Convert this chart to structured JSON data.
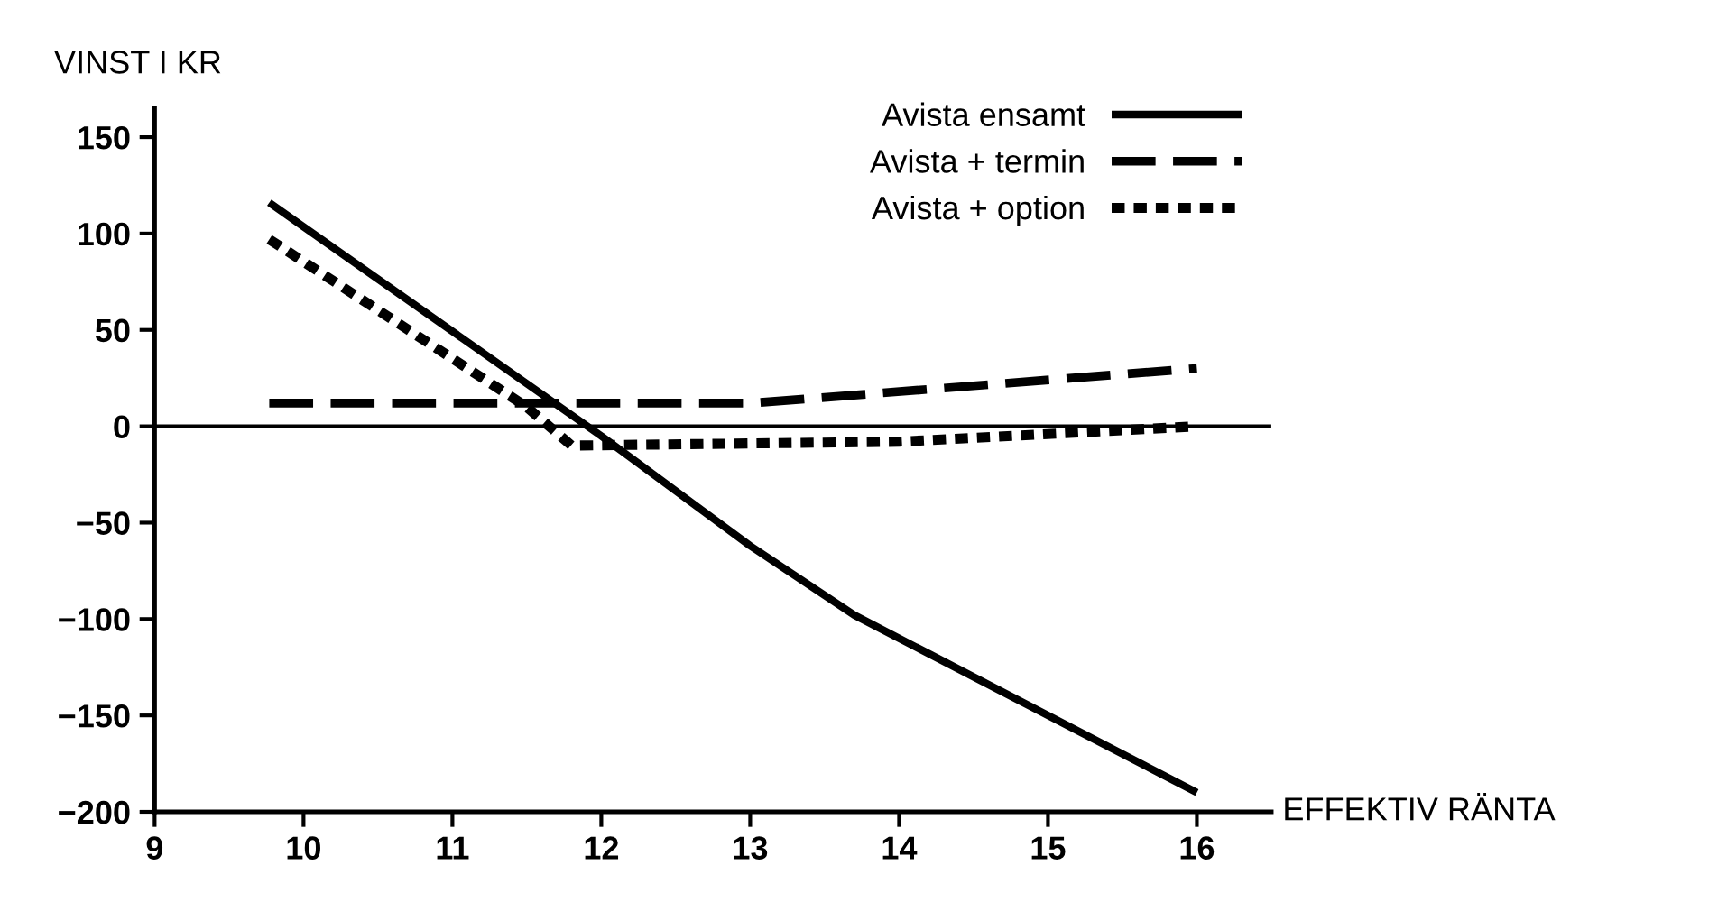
{
  "chart_data": {
    "type": "line",
    "xlabel": "EFFEKTIV RÄNTA",
    "ylabel": "VINST I KR",
    "xlim": [
      9,
      16.5
    ],
    "ylim": [
      -200,
      165
    ],
    "xticks": [
      9,
      10,
      11,
      12,
      13,
      14,
      15,
      16
    ],
    "yticks": [
      {
        "value": -200,
        "label": "−200"
      },
      {
        "value": -150,
        "label": "−150"
      },
      {
        "value": -100,
        "label": "−100"
      },
      {
        "value": -50,
        "label": "−50"
      },
      0,
      50,
      100,
      150
    ],
    "grid": false,
    "legend": "top right",
    "ref_lines": [
      {
        "axis": "y",
        "value": 0,
        "color": "#000000",
        "line_style": "solid"
      }
    ],
    "series": [
      {
        "name": "Avista ensamt",
        "color": "#000000",
        "line_style": "solid",
        "x": [
          9.77,
          12,
          13,
          13.7,
          16
        ],
        "values": [
          116,
          -5,
          -62,
          -98,
          -190
        ]
      },
      {
        "name": "Avista + termin",
        "color": "#000000",
        "line_style": "dashed",
        "x": [
          9.77,
          13,
          16
        ],
        "values": [
          12,
          12,
          30
        ]
      },
      {
        "name": "Avista + option",
        "color": "#000000",
        "line_style": "dotted",
        "x": [
          9.77,
          11.5,
          11.8,
          14,
          16
        ],
        "values": [
          97,
          10,
          -10,
          -8,
          0
        ]
      }
    ]
  }
}
